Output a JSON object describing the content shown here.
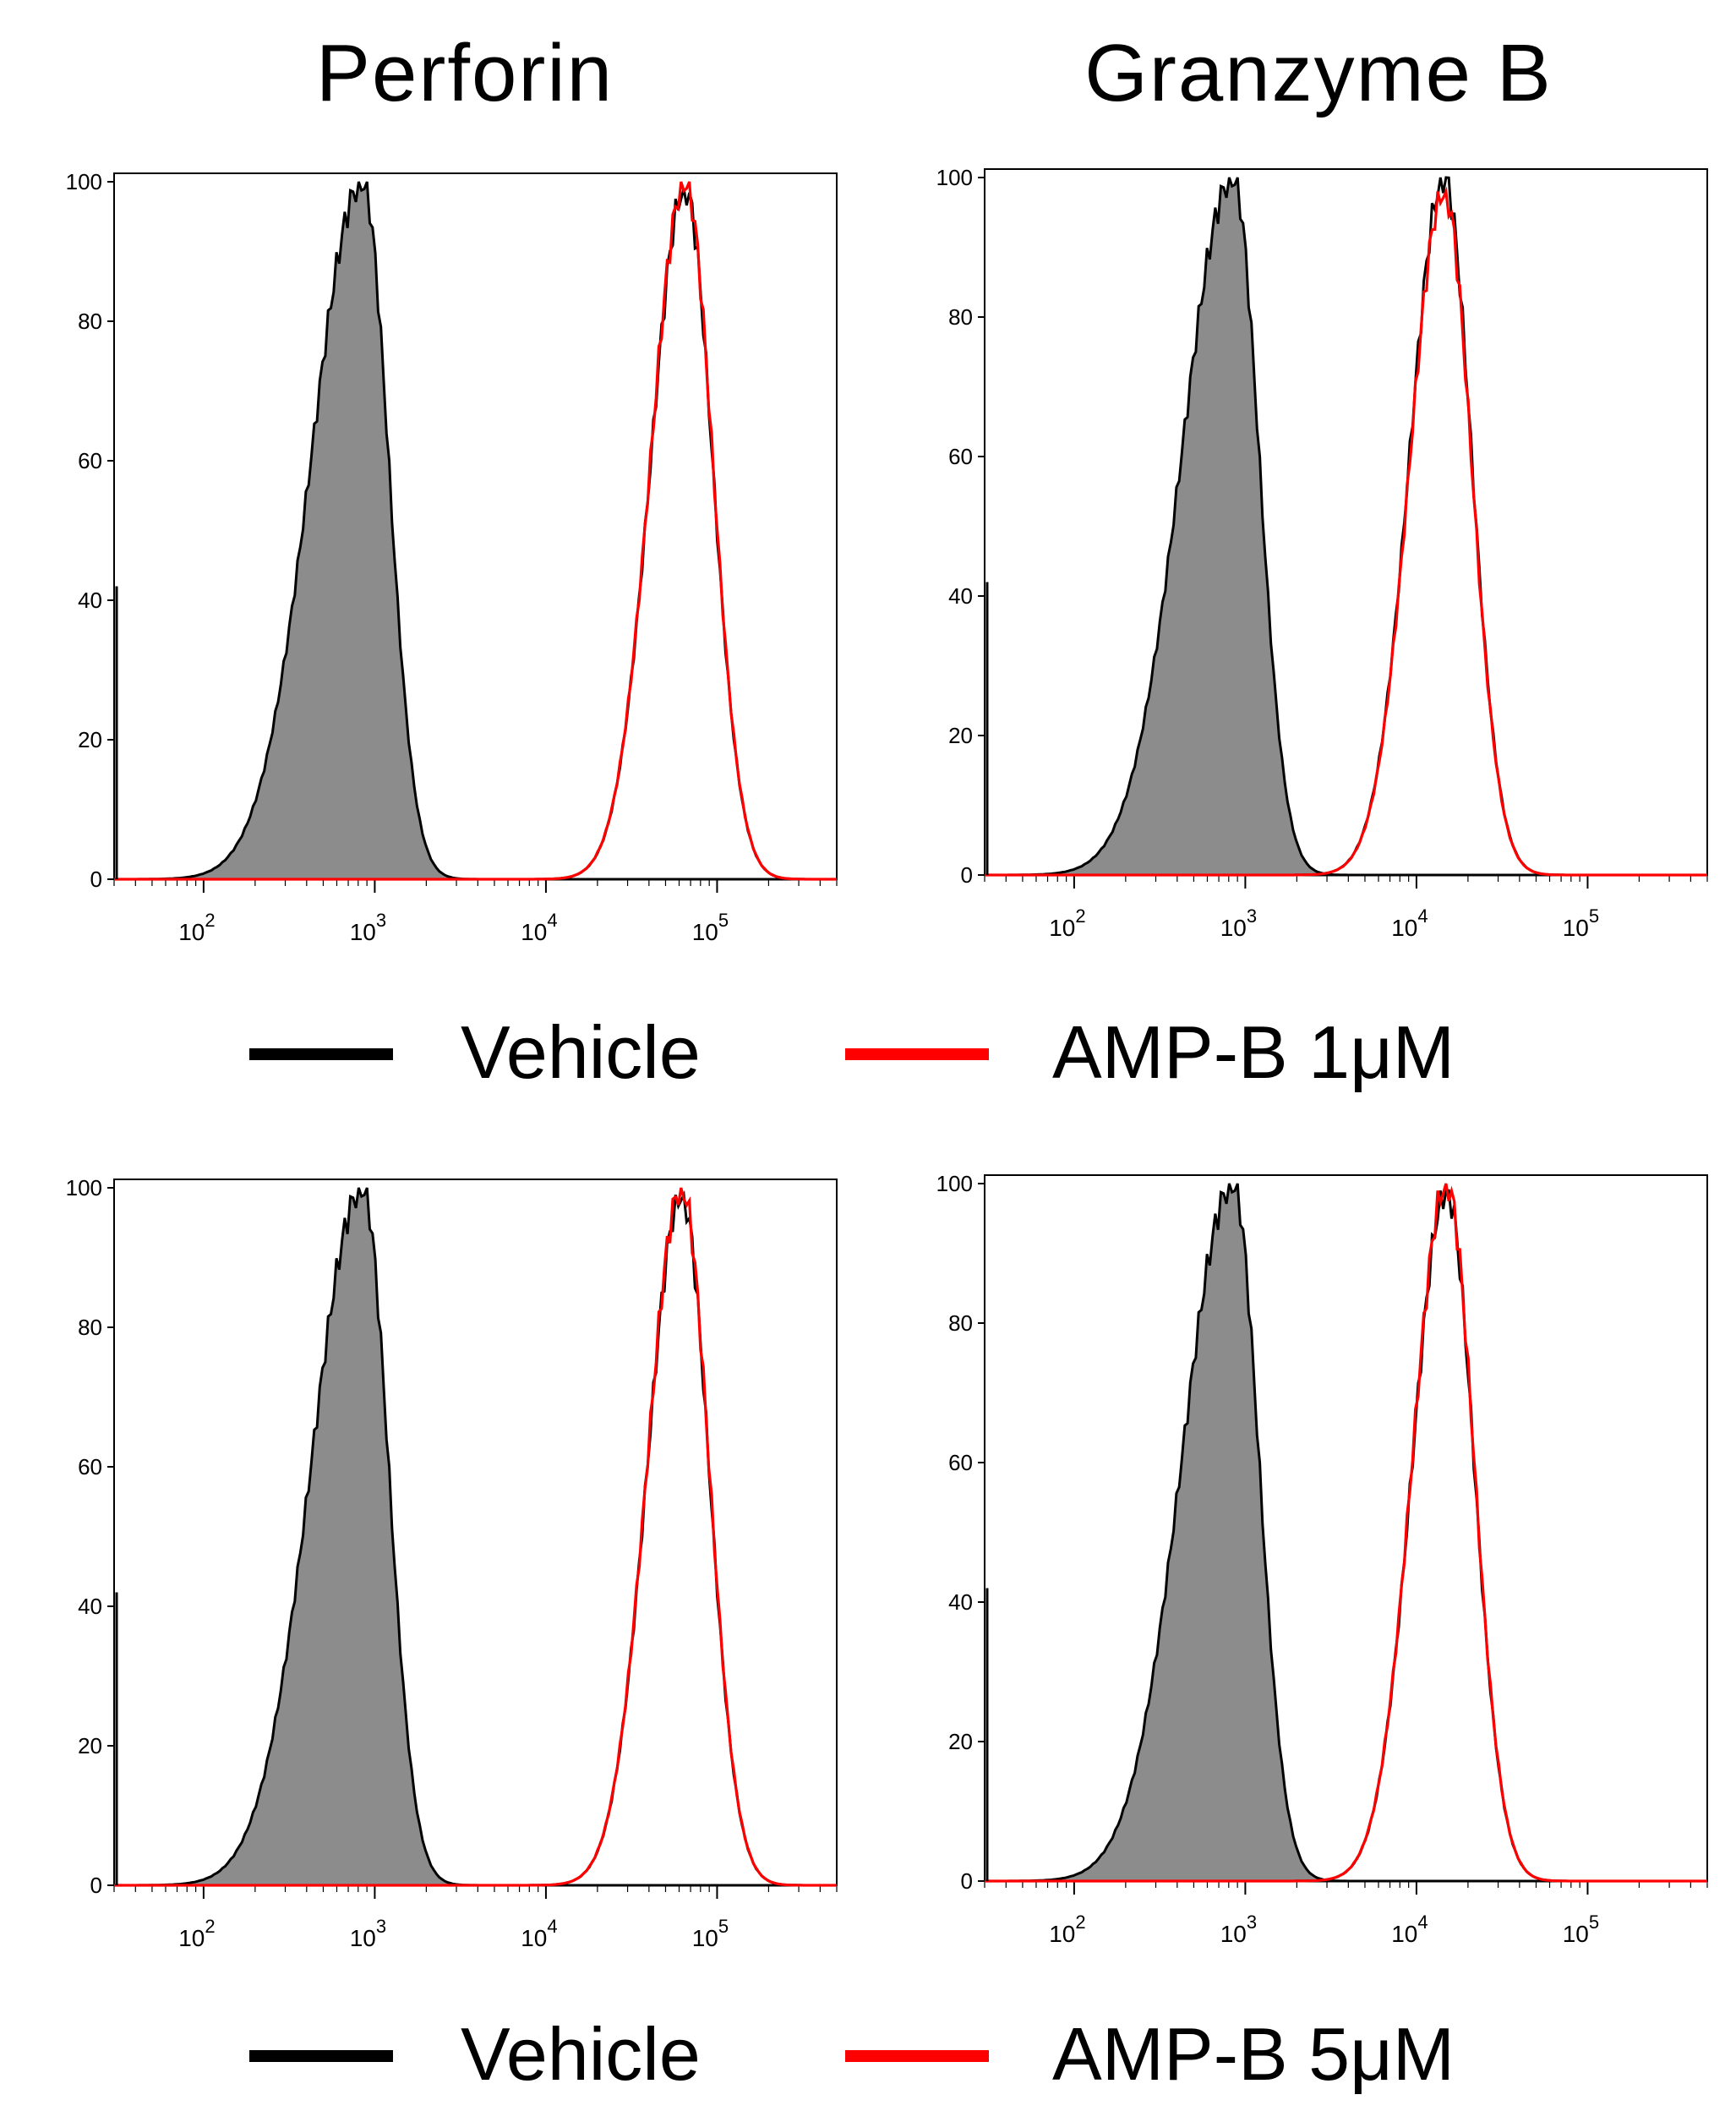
{
  "titles": {
    "perforin": "Perforin",
    "granzyme": "Granzyme B"
  },
  "legend_top": {
    "vehicle": "Vehicle",
    "treatment": "AMP-B 1μM"
  },
  "legend_bottom": {
    "vehicle": "Vehicle",
    "treatment": "AMP-B 5μM"
  },
  "colors": {
    "vehicle_line": "#000000",
    "vehicle_fill": "#8c8c8c",
    "treatment_line": "#ff0000"
  },
  "chart_data": [
    {
      "type": "histogram",
      "title": "Perforin",
      "condition": "AMP-B 1μM",
      "x_scale": "log",
      "xlim": [
        30,
        500000
      ],
      "x_ticks": [
        {
          "base": "10",
          "exp": "2",
          "value": 100
        },
        {
          "base": "10",
          "exp": "3",
          "value": 1000
        },
        {
          "base": "10",
          "exp": "4",
          "value": 10000
        },
        {
          "base": "10",
          "exp": "5",
          "value": 100000
        }
      ],
      "y_ticks": [
        "0",
        "20",
        "40",
        "60",
        "80",
        "100"
      ],
      "ylim": [
        0,
        100
      ],
      "series": [
        {
          "name": "Vehicle",
          "filled": true,
          "peak_x": 850,
          "peak_y": 100
        },
        {
          "name": "Vehicle",
          "filled": false,
          "peak_x": 65000,
          "peak_y": 99
        },
        {
          "name": "AMP-B 1μM",
          "filled": false,
          "peak_x": 65000,
          "peak_y": 100
        }
      ]
    },
    {
      "type": "histogram",
      "title": "Granzyme B",
      "condition": "AMP-B 1μM",
      "x_scale": "log",
      "xlim": [
        30,
        500000
      ],
      "x_ticks": [
        {
          "base": "10",
          "exp": "2",
          "value": 100
        },
        {
          "base": "10",
          "exp": "3",
          "value": 1000
        },
        {
          "base": "10",
          "exp": "4",
          "value": 10000
        },
        {
          "base": "10",
          "exp": "5",
          "value": 100000
        }
      ],
      "y_ticks": [
        "0",
        "20",
        "40",
        "60",
        "80",
        "100"
      ],
      "ylim": [
        0,
        100
      ],
      "series": [
        {
          "name": "Vehicle",
          "filled": true,
          "peak_x": 850,
          "peak_y": 100
        },
        {
          "name": "Vehicle",
          "filled": false,
          "peak_x": 14500,
          "peak_y": 100
        },
        {
          "name": "AMP-B 1μM",
          "filled": false,
          "peak_x": 14500,
          "peak_y": 98
        }
      ]
    },
    {
      "type": "histogram",
      "title": "Perforin",
      "condition": "AMP-B 5μM",
      "x_scale": "log",
      "xlim": [
        30,
        500000
      ],
      "x_ticks": [
        {
          "base": "10",
          "exp": "2",
          "value": 100
        },
        {
          "base": "10",
          "exp": "3",
          "value": 1000
        },
        {
          "base": "10",
          "exp": "4",
          "value": 10000
        },
        {
          "base": "10",
          "exp": "5",
          "value": 100000
        }
      ],
      "y_ticks": [
        "0",
        "20",
        "40",
        "60",
        "80",
        "100"
      ],
      "ylim": [
        0,
        100
      ],
      "series": [
        {
          "name": "Vehicle",
          "filled": true,
          "peak_x": 850,
          "peak_y": 100
        },
        {
          "name": "Vehicle",
          "filled": false,
          "peak_x": 62000,
          "peak_y": 99
        },
        {
          "name": "AMP-B 5μM",
          "filled": false,
          "peak_x": 62000,
          "peak_y": 100
        }
      ]
    },
    {
      "type": "histogram",
      "title": "Granzyme B",
      "condition": "AMP-B 5μM",
      "x_scale": "log",
      "xlim": [
        30,
        500000
      ],
      "x_ticks": [
        {
          "base": "10",
          "exp": "2",
          "value": 100
        },
        {
          "base": "10",
          "exp": "3",
          "value": 1000
        },
        {
          "base": "10",
          "exp": "4",
          "value": 10000
        },
        {
          "base": "10",
          "exp": "5",
          "value": 100000
        }
      ],
      "y_ticks": [
        "0",
        "20",
        "40",
        "60",
        "80",
        "100"
      ],
      "ylim": [
        0,
        100
      ],
      "series": [
        {
          "name": "Vehicle",
          "filled": true,
          "peak_x": 850,
          "peak_y": 100
        },
        {
          "name": "Vehicle",
          "filled": false,
          "peak_x": 15000,
          "peak_y": 99
        },
        {
          "name": "AMP-B 5μM",
          "filled": false,
          "peak_x": 15000,
          "peak_y": 100
        }
      ]
    }
  ]
}
